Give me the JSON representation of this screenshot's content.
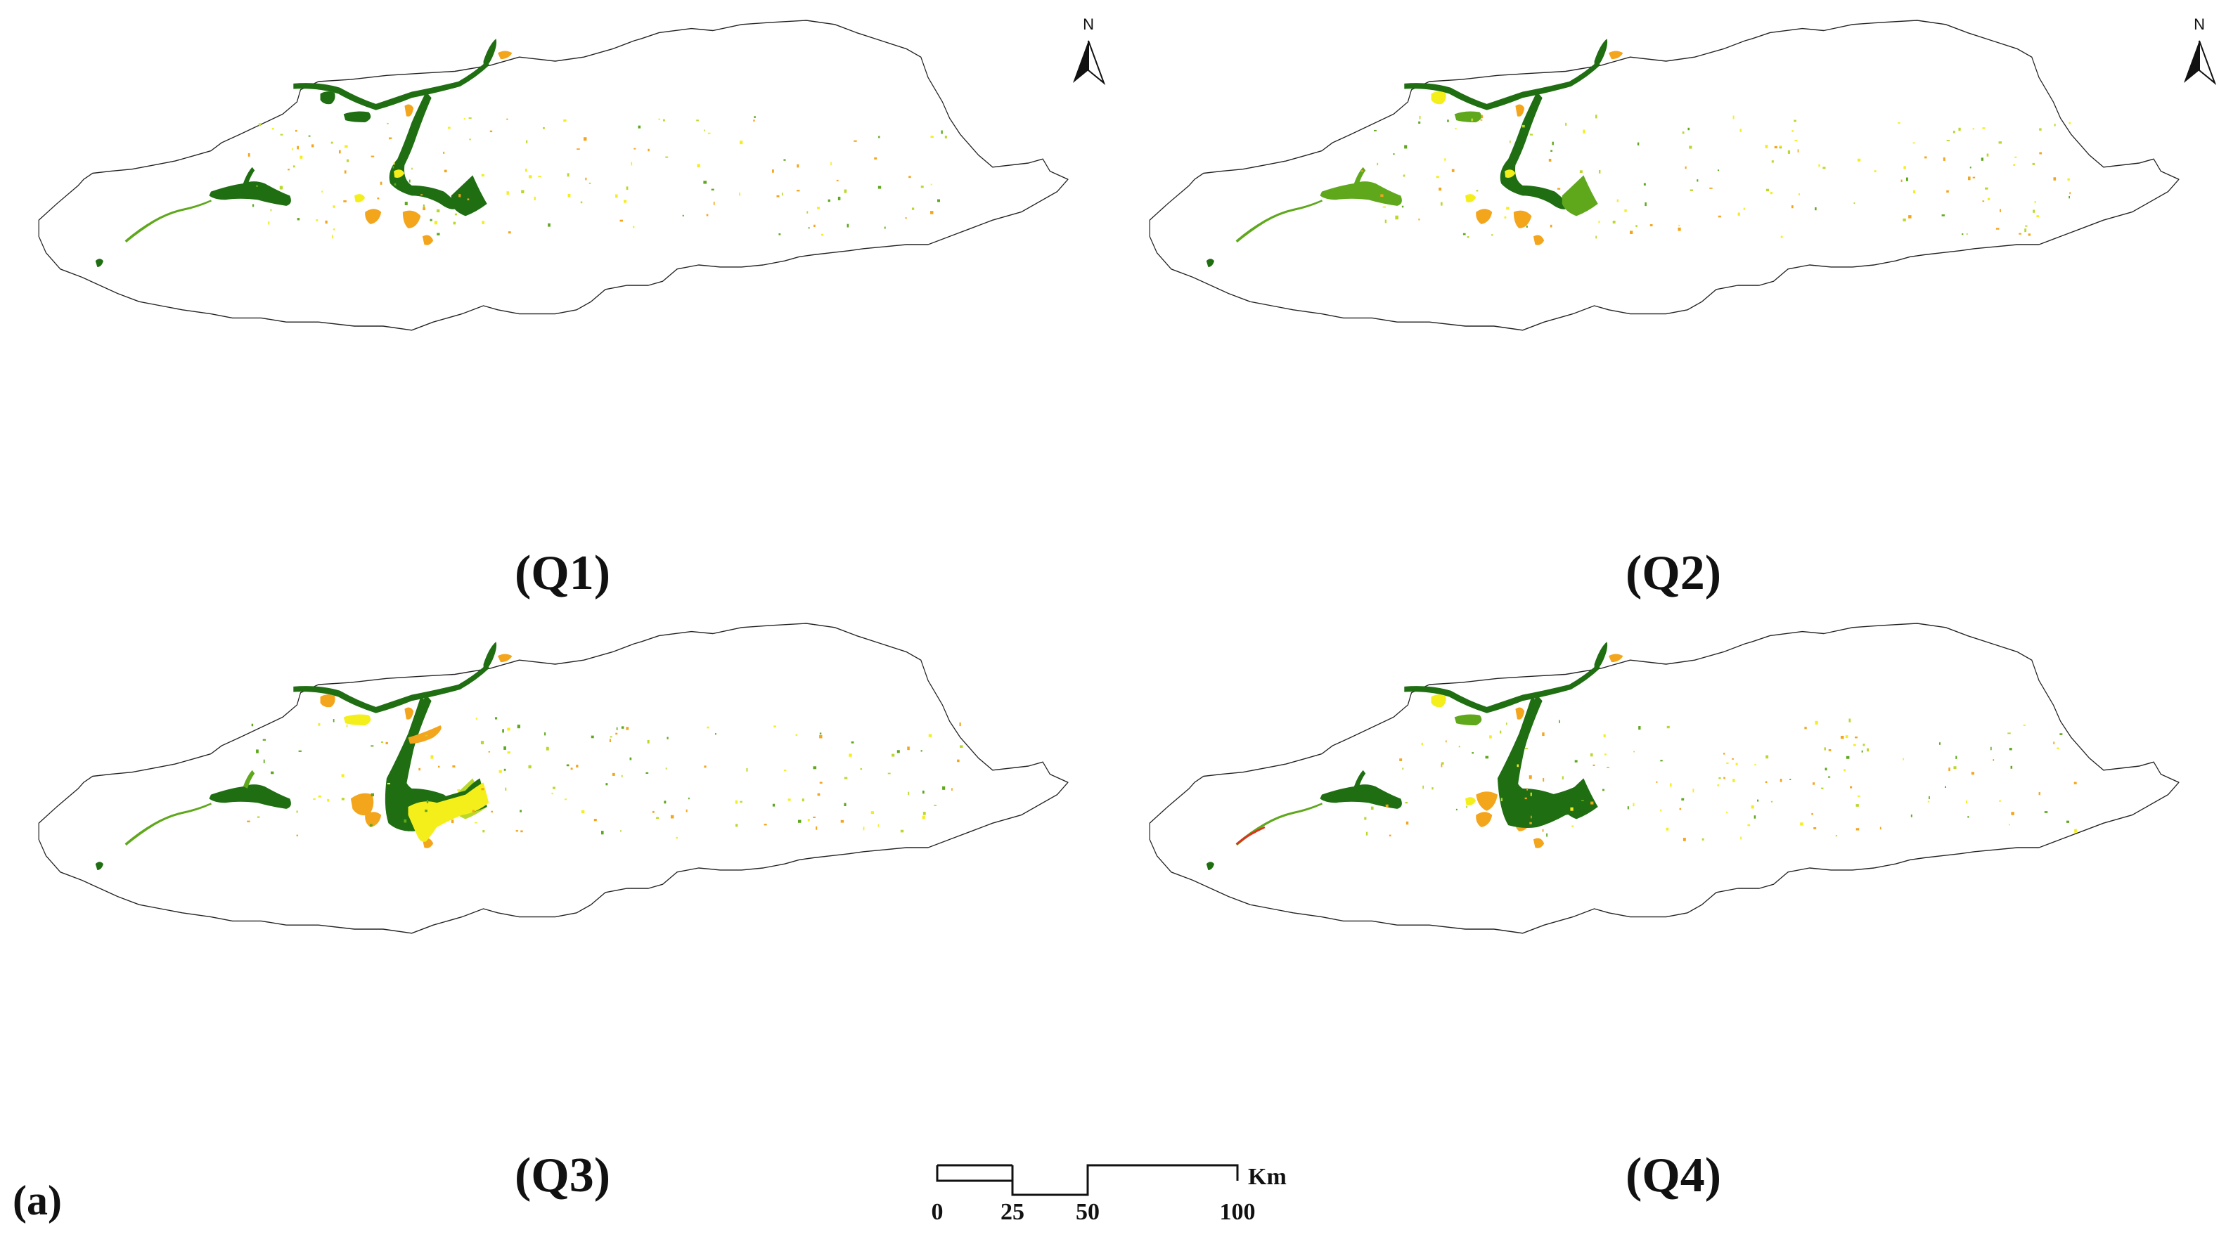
{
  "figure": {
    "label": "(a)"
  },
  "colors": {
    "water_dark": "#1f6e12",
    "vegetation_mid": "#5fa81c",
    "vegetation_light": "#b9d92a",
    "yellow": "#f4ef1a",
    "orange": "#f3a51c",
    "red": "#e0301e",
    "outline": "#222222"
  },
  "north_arrow": {
    "letter": "N"
  },
  "scale_bar": {
    "ticks": [
      "0",
      "25",
      "50",
      "100"
    ],
    "unit": "Km"
  },
  "panels": [
    {
      "id": "Q1",
      "label": "(Q1)",
      "has_north_arrow": true
    },
    {
      "id": "Q2",
      "label": "(Q2)",
      "has_north_arrow": true
    },
    {
      "id": "Q3",
      "label": "(Q3)",
      "has_north_arrow": false
    },
    {
      "id": "Q4",
      "label": "(Q4)",
      "has_north_arrow": false
    }
  ]
}
